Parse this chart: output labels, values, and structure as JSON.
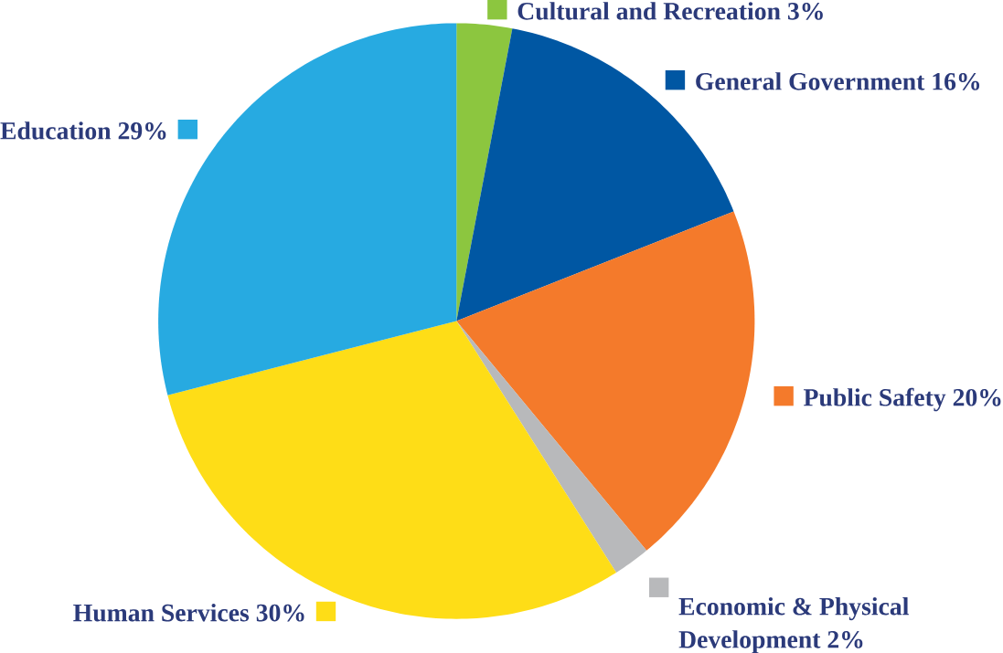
{
  "chart_data": {
    "type": "pie",
    "categories": [
      "Cultural and Recreation",
      "General Government",
      "Public Safety",
      "Economic & Physical Development",
      "Human Services",
      "Education"
    ],
    "values": [
      3,
      16,
      20,
      2,
      30,
      29
    ],
    "legend": "right",
    "value_labels": [
      "3%",
      "16%",
      "20%",
      "2%",
      "30%",
      "29%"
    ],
    "colors": [
      "#8cc63f",
      "#0057a3",
      "#f47a2b",
      "#b8b9bb",
      "#fedd17",
      "#27aae1"
    ]
  }
}
